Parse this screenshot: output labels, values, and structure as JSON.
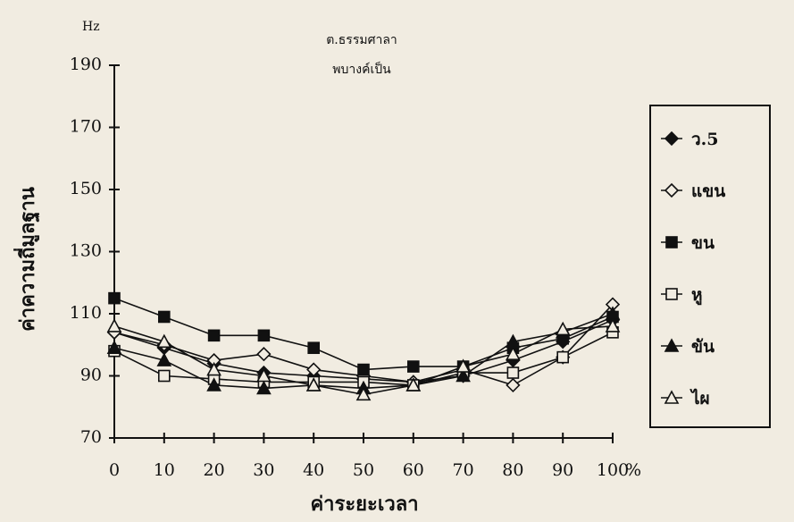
{
  "chart_data": {
    "type": "line",
    "title": "ต.ธรรมศาลา",
    "subtitle": "พบางค์เป็น",
    "y_label": "ค่าความถี่มูลฐาน",
    "x_label": "ค่าระยะเวลา",
    "y_unit": "Hz",
    "x_unit": "%",
    "x": [
      0,
      10,
      20,
      30,
      40,
      50,
      60,
      70,
      80,
      90,
      100
    ],
    "xlim": [
      0,
      100
    ],
    "xticks": [
      0,
      10,
      20,
      30,
      40,
      50,
      60,
      70,
      80,
      90,
      100
    ],
    "ylim": [
      70,
      190
    ],
    "yticks": [
      70,
      90,
      110,
      130,
      150,
      170,
      190
    ],
    "grid": false,
    "legend": "right",
    "series": [
      {
        "name": "ว.5",
        "color": "#111111",
        "marker": "diamond",
        "filled": true,
        "values": [
          104,
          99,
          94,
          91,
          90,
          89,
          88,
          90,
          95,
          101,
          108
        ]
      },
      {
        "name": "แขน",
        "color": "#111111",
        "marker": "diamond",
        "filled": false,
        "values": [
          104,
          100,
          95,
          97,
          92,
          90,
          88,
          92,
          87,
          96,
          113
        ]
      },
      {
        "name": "ขน",
        "color": "#111111",
        "marker": "square",
        "filled": true,
        "values": [
          115,
          109,
          103,
          103,
          99,
          92,
          93,
          93,
          99,
          102,
          109
        ]
      },
      {
        "name": "หู",
        "color": "#111111",
        "marker": "square",
        "filled": false,
        "values": [
          98,
          90,
          89,
          88,
          88,
          88,
          87,
          91,
          91,
          96,
          104
        ]
      },
      {
        "name": "ขัน",
        "color": "#111111",
        "marker": "triangle",
        "filled": true,
        "values": [
          99,
          95,
          87,
          86,
          87,
          86,
          87,
          90,
          101,
          104,
          110
        ]
      },
      {
        "name": "ไผ",
        "color": "#111111",
        "marker": "triangle",
        "filled": false,
        "values": [
          106,
          101,
          92,
          90,
          87,
          84,
          87,
          93,
          97,
          105,
          106
        ]
      }
    ]
  }
}
